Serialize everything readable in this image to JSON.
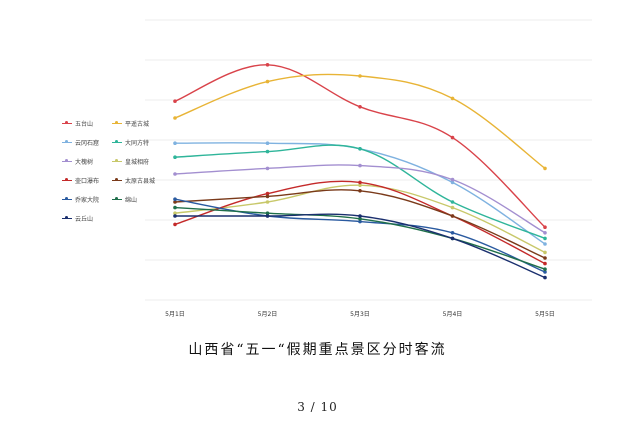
{
  "caption": "山西省“五一“假期重点景区分时客流",
  "page_number": "3 / 10",
  "chart_data": {
    "type": "line",
    "title": "",
    "xlabel": "",
    "ylabel": "",
    "categories": [
      "5月1日",
      "5月2日",
      "5月3日",
      "5月4日",
      "5月5日"
    ],
    "ylim": [
      0,
      100
    ],
    "grid": true,
    "legend_position": "left",
    "series": [
      {
        "name": "五台山",
        "color": "#d9434a",
        "values": [
          71,
          84,
          69,
          58,
          26
        ]
      },
      {
        "name": "平遥古城",
        "color": "#e8b436",
        "values": [
          65,
          78,
          80,
          72,
          47
        ]
      },
      {
        "name": "云冈石窟",
        "color": "#7fb2e0",
        "values": [
          56,
          56,
          54,
          42,
          20
        ]
      },
      {
        "name": "大同方特",
        "color": "#2fb59a",
        "values": [
          51,
          53,
          54,
          35,
          22
        ]
      },
      {
        "name": "大槐树",
        "color": "#a38fd0",
        "values": [
          45,
          47,
          48,
          43,
          24
        ]
      },
      {
        "name": "皇城相府",
        "color": "#c8c86a",
        "values": [
          31,
          35,
          41,
          33,
          17
        ]
      },
      {
        "name": "壶口瀑布",
        "color": "#c42a2a",
        "values": [
          27,
          38,
          42,
          30,
          13
        ]
      },
      {
        "name": "太原古县城",
        "color": "#7a3a1a",
        "values": [
          35,
          37,
          39,
          30,
          15
        ]
      },
      {
        "name": "乔家大院",
        "color": "#2a5aa0",
        "values": [
          36,
          30,
          28,
          24,
          10
        ]
      },
      {
        "name": "绵山",
        "color": "#1f6f4a",
        "values": [
          33,
          31,
          29,
          22,
          11
        ]
      },
      {
        "name": "云丘山",
        "color": "#1a2f6e",
        "values": [
          30,
          30,
          30,
          22,
          8
        ]
      }
    ]
  }
}
